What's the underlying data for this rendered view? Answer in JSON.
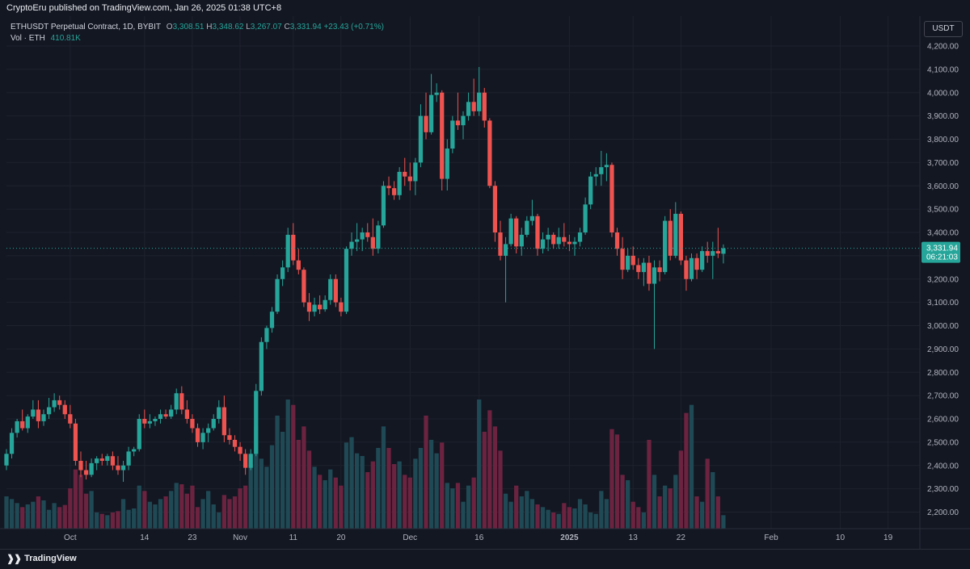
{
  "header": {
    "published": "CryptoEru published on TradingView.com, Jan 26, 2025 01:38 UTC+8"
  },
  "legend": {
    "symbol": "ETHUSDT Perpetual Contract, 1D, BYBIT",
    "o_label": "O",
    "o": "3,308.51",
    "h_label": "H",
    "h": "3,348.62",
    "l_label": "L",
    "l": "3,267.07",
    "c_label": "C",
    "c": "3,331.94",
    "change": "+23.43 (+0.71%)",
    "vol_label": "Vol · ETH",
    "vol": "410.81K"
  },
  "currency": "USDT",
  "last_price": {
    "value": 3331.94,
    "label": "3,331.94",
    "countdown": "06:21:03"
  },
  "footer": {
    "brand": "TradingView"
  },
  "colors": {
    "up": "#26a69a",
    "down": "#ef5350",
    "vol_up": "#1f4a55",
    "vol_down": "#6b2340",
    "bg": "#131722"
  },
  "chart_data": {
    "type": "candlestick",
    "yaxis": {
      "ticks": [
        2200,
        2300,
        2400,
        2500,
        2600,
        2700,
        2800,
        2900,
        3000,
        3100,
        3200,
        3300,
        3400,
        3500,
        3600,
        3700,
        3800,
        3900,
        4000,
        4100,
        4200
      ],
      "tick_labels": [
        "2,200.00",
        "2,300.00",
        "2,400.00",
        "2,500.00",
        "2,600.00",
        "2,700.00",
        "2,800.00",
        "2,900.00",
        "3,000.00",
        "3,100.00",
        "3,200.00",
        "3,300.00",
        "3,400.00",
        "3,500.00",
        "3,600.00",
        "3,700.00",
        "3,800.00",
        "3,900.00",
        "4,000.00",
        "4,100.00",
        "4,200.00"
      ]
    },
    "xaxis": {
      "tick_labels": [
        "Oct",
        "14",
        "23",
        "Nov",
        "11",
        "20",
        "Dec",
        "16",
        "2025",
        "13",
        "22",
        "Feb",
        "10",
        "19"
      ],
      "tick_days": [
        12,
        26,
        35,
        44,
        54,
        63,
        76,
        89,
        106,
        118,
        127,
        144,
        157,
        166
      ],
      "bold": [
        false,
        false,
        false,
        false,
        false,
        false,
        false,
        false,
        true,
        false,
        false,
        false,
        false,
        false
      ]
    },
    "x_range": [
      0,
      172
    ],
    "candles": [
      [
        0,
        2400,
        2470,
        2380,
        2450,
        120
      ],
      [
        1,
        2450,
        2560,
        2430,
        2540,
        110
      ],
      [
        2,
        2540,
        2600,
        2520,
        2590,
        95
      ],
      [
        3,
        2590,
        2640,
        2550,
        2560,
        80
      ],
      [
        4,
        2560,
        2620,
        2540,
        2610,
        90
      ],
      [
        5,
        2610,
        2680,
        2600,
        2640,
        100
      ],
      [
        6,
        2640,
        2680,
        2560,
        2590,
        120
      ],
      [
        7,
        2590,
        2640,
        2570,
        2620,
        105
      ],
      [
        8,
        2620,
        2690,
        2600,
        2650,
        70
      ],
      [
        9,
        2650,
        2710,
        2630,
        2680,
        95
      ],
      [
        10,
        2680,
        2700,
        2640,
        2660,
        80
      ],
      [
        11,
        2660,
        2680,
        2600,
        2620,
        88
      ],
      [
        12,
        2620,
        2660,
        2560,
        2580,
        150
      ],
      [
        13,
        2580,
        2600,
        2400,
        2420,
        220
      ],
      [
        14,
        2420,
        2460,
        2350,
        2380,
        200
      ],
      [
        15,
        2380,
        2420,
        2340,
        2360,
        130
      ],
      [
        16,
        2360,
        2430,
        2350,
        2410,
        140
      ],
      [
        17,
        2410,
        2440,
        2380,
        2430,
        60
      ],
      [
        18,
        2430,
        2450,
        2400,
        2420,
        55
      ],
      [
        19,
        2420,
        2450,
        2400,
        2440,
        50
      ],
      [
        20,
        2440,
        2460,
        2380,
        2400,
        60
      ],
      [
        21,
        2400,
        2440,
        2360,
        2380,
        65
      ],
      [
        22,
        2380,
        2420,
        2330,
        2400,
        110
      ],
      [
        23,
        2400,
        2480,
        2380,
        2460,
        70
      ],
      [
        24,
        2460,
        2480,
        2440,
        2470,
        75
      ],
      [
        25,
        2470,
        2620,
        2460,
        2600,
        160
      ],
      [
        26,
        2600,
        2640,
        2560,
        2580,
        140
      ],
      [
        27,
        2580,
        2620,
        2560,
        2590,
        100
      ],
      [
        28,
        2590,
        2610,
        2570,
        2600,
        90
      ],
      [
        29,
        2600,
        2640,
        2580,
        2620,
        110
      ],
      [
        30,
        2620,
        2640,
        2600,
        2610,
        120
      ],
      [
        31,
        2610,
        2660,
        2600,
        2640,
        140
      ],
      [
        32,
        2640,
        2730,
        2620,
        2710,
        170
      ],
      [
        33,
        2710,
        2740,
        2620,
        2640,
        165
      ],
      [
        34,
        2640,
        2680,
        2580,
        2600,
        130
      ],
      [
        35,
        2600,
        2620,
        2540,
        2560,
        160
      ],
      [
        36,
        2560,
        2580,
        2480,
        2500,
        80
      ],
      [
        37,
        2500,
        2560,
        2470,
        2540,
        110
      ],
      [
        38,
        2540,
        2580,
        2500,
        2560,
        140
      ],
      [
        39,
        2560,
        2620,
        2550,
        2600,
        90
      ],
      [
        40,
        2600,
        2680,
        2580,
        2650,
        60
      ],
      [
        41,
        2650,
        2700,
        2500,
        2530,
        125
      ],
      [
        42,
        2530,
        2560,
        2490,
        2510,
        110
      ],
      [
        43,
        2510,
        2530,
        2460,
        2480,
        120
      ],
      [
        44,
        2480,
        2500,
        2420,
        2450,
        150
      ],
      [
        45,
        2450,
        2470,
        2360,
        2390,
        160
      ],
      [
        46,
        2390,
        2470,
        2380,
        2450,
        240
      ],
      [
        47,
        2450,
        2750,
        2440,
        2720,
        380
      ],
      [
        48,
        2720,
        2950,
        2700,
        2930,
        260
      ],
      [
        49,
        2930,
        3000,
        2900,
        2990,
        230
      ],
      [
        50,
        2990,
        3080,
        2970,
        3060,
        310
      ],
      [
        51,
        3060,
        3220,
        3050,
        3200,
        420
      ],
      [
        52,
        3200,
        3280,
        3170,
        3250,
        360
      ],
      [
        53,
        3250,
        3420,
        3230,
        3390,
        480
      ],
      [
        54,
        3390,
        3440,
        3260,
        3280,
        460
      ],
      [
        55,
        3280,
        3330,
        3220,
        3240,
        330
      ],
      [
        56,
        3240,
        3250,
        3080,
        3100,
        380
      ],
      [
        57,
        3100,
        3140,
        3020,
        3060,
        290
      ],
      [
        58,
        3060,
        3120,
        3040,
        3090,
        230
      ],
      [
        59,
        3090,
        3130,
        3050,
        3070,
        200
      ],
      [
        60,
        3070,
        3130,
        3060,
        3110,
        180
      ],
      [
        61,
        3110,
        3220,
        3090,
        3200,
        220
      ],
      [
        62,
        3200,
        3220,
        3080,
        3100,
        190
      ],
      [
        63,
        3100,
        3120,
        3040,
        3060,
        160
      ],
      [
        64,
        3060,
        3340,
        3050,
        3330,
        320
      ],
      [
        65,
        3330,
        3400,
        3300,
        3360,
        340
      ],
      [
        66,
        3360,
        3440,
        3320,
        3370,
        280
      ],
      [
        67,
        3370,
        3420,
        3320,
        3400,
        270
      ],
      [
        68,
        3400,
        3440,
        3360,
        3380,
        210
      ],
      [
        69,
        3380,
        3460,
        3300,
        3330,
        250
      ],
      [
        70,
        3330,
        3450,
        3310,
        3430,
        300
      ],
      [
        71,
        3430,
        3620,
        3420,
        3600,
        380
      ],
      [
        72,
        3600,
        3640,
        3560,
        3590,
        300
      ],
      [
        73,
        3590,
        3620,
        3540,
        3560,
        240
      ],
      [
        74,
        3560,
        3680,
        3540,
        3660,
        250
      ],
      [
        75,
        3660,
        3720,
        3600,
        3640,
        200
      ],
      [
        76,
        3640,
        3700,
        3580,
        3620,
        190
      ],
      [
        77,
        3620,
        3720,
        3560,
        3700,
        260
      ],
      [
        78,
        3700,
        3950,
        3680,
        3900,
        300
      ],
      [
        79,
        3900,
        4000,
        3800,
        3830,
        420
      ],
      [
        80,
        3830,
        4080,
        3820,
        3990,
        330
      ],
      [
        81,
        3990,
        4040,
        3960,
        4000,
        280
      ],
      [
        82,
        4000,
        4010,
        3580,
        3630,
        320
      ],
      [
        83,
        3630,
        3800,
        3580,
        3760,
        170
      ],
      [
        84,
        3760,
        3900,
        3740,
        3880,
        150
      ],
      [
        85,
        3880,
        4000,
        3840,
        3860,
        170
      ],
      [
        86,
        3860,
        3920,
        3800,
        3900,
        100
      ],
      [
        87,
        3900,
        4000,
        3880,
        3960,
        160
      ],
      [
        88,
        3960,
        4060,
        3900,
        3920,
        190
      ],
      [
        89,
        3920,
        4110,
        3900,
        4000,
        480
      ],
      [
        90,
        4000,
        4020,
        3850,
        3880,
        360
      ],
      [
        91,
        3880,
        3890,
        3590,
        3600,
        440
      ],
      [
        92,
        3600,
        3620,
        3360,
        3400,
        380
      ],
      [
        93,
        3400,
        3450,
        3280,
        3300,
        290
      ],
      [
        94,
        3300,
        3380,
        3100,
        3350,
        130
      ],
      [
        95,
        3350,
        3480,
        3340,
        3460,
        100
      ],
      [
        96,
        3460,
        3470,
        3310,
        3340,
        160
      ],
      [
        97,
        3340,
        3420,
        3300,
        3390,
        120
      ],
      [
        98,
        3390,
        3470,
        3380,
        3450,
        140
      ],
      [
        99,
        3450,
        3540,
        3430,
        3470,
        110
      ],
      [
        100,
        3470,
        3480,
        3300,
        3330,
        90
      ],
      [
        101,
        3330,
        3400,
        3310,
        3370,
        80
      ],
      [
        102,
        3370,
        3420,
        3320,
        3390,
        70
      ],
      [
        103,
        3390,
        3400,
        3330,
        3350,
        60
      ],
      [
        104,
        3350,
        3420,
        3330,
        3380,
        55
      ],
      [
        105,
        3380,
        3440,
        3340,
        3360,
        95
      ],
      [
        106,
        3360,
        3390,
        3320,
        3350,
        80
      ],
      [
        107,
        3350,
        3380,
        3300,
        3360,
        75
      ],
      [
        108,
        3360,
        3420,
        3340,
        3400,
        110
      ],
      [
        109,
        3400,
        3550,
        3390,
        3520,
        90
      ],
      [
        110,
        3520,
        3660,
        3500,
        3640,
        60
      ],
      [
        111,
        3640,
        3680,
        3600,
        3650,
        55
      ],
      [
        112,
        3650,
        3750,
        3600,
        3680,
        140
      ],
      [
        113,
        3680,
        3740,
        3620,
        3690,
        110
      ],
      [
        114,
        3690,
        3700,
        3380,
        3400,
        370
      ],
      [
        115,
        3400,
        3420,
        3300,
        3330,
        350
      ],
      [
        116,
        3330,
        3380,
        3200,
        3240,
        200
      ],
      [
        117,
        3240,
        3330,
        3230,
        3300,
        180
      ],
      [
        118,
        3300,
        3340,
        3240,
        3260,
        100
      ],
      [
        119,
        3260,
        3290,
        3200,
        3230,
        80
      ],
      [
        120,
        3230,
        3290,
        3170,
        3270,
        60
      ],
      [
        121,
        3270,
        3300,
        3150,
        3180,
        330
      ],
      [
        122,
        3180,
        3280,
        2900,
        3250,
        200
      ],
      [
        123,
        3250,
        3280,
        3190,
        3230,
        120
      ],
      [
        124,
        3230,
        3470,
        3220,
        3450,
        160
      ],
      [
        125,
        3450,
        3500,
        3280,
        3300,
        150
      ],
      [
        126,
        3300,
        3530,
        3290,
        3480,
        200
      ],
      [
        127,
        3480,
        3490,
        3260,
        3280,
        290
      ],
      [
        128,
        3280,
        3300,
        3150,
        3200,
        430
      ],
      [
        129,
        3200,
        3310,
        3190,
        3290,
        460
      ],
      [
        130,
        3290,
        3310,
        3200,
        3240,
        120
      ],
      [
        131,
        3240,
        3340,
        3230,
        3320,
        100
      ],
      [
        132,
        3320,
        3360,
        3270,
        3300,
        260
      ],
      [
        133,
        3300,
        3360,
        3200,
        3320,
        210
      ],
      [
        134,
        3320,
        3420,
        3290,
        3310,
        120
      ],
      [
        135,
        3308.51,
        3348.62,
        3267.07,
        3331.94,
        50
      ]
    ]
  }
}
